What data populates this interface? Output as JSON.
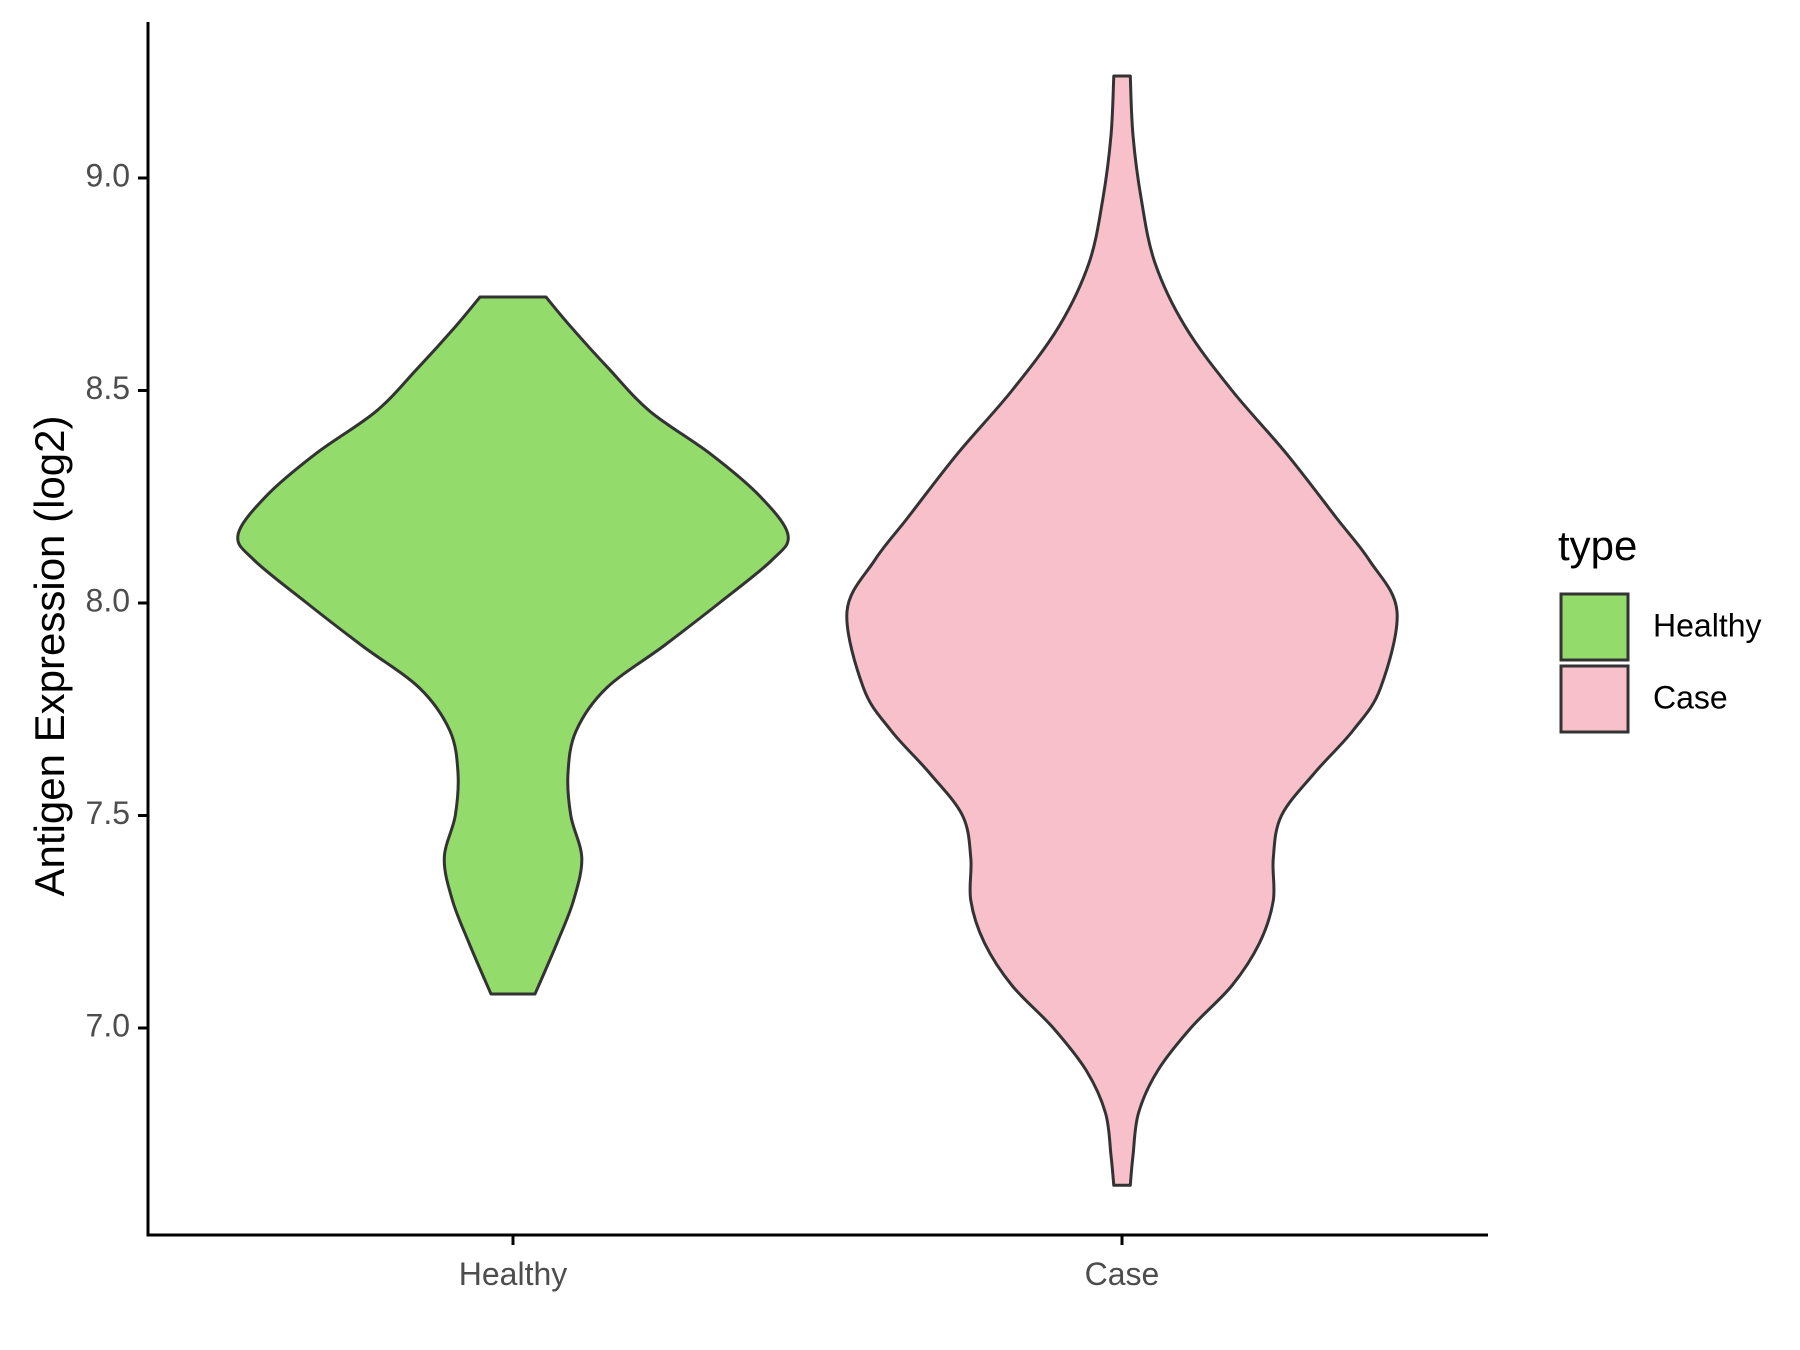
{
  "chart_data": {
    "type": "violin",
    "title": "",
    "xlabel": "",
    "ylabel": "Antigen Expression (log2)",
    "ylim": [
      6.6,
      9.4
    ],
    "yticks": [
      "7.0",
      "7.5",
      "8.0",
      "8.5",
      "9.0"
    ],
    "grid": false,
    "legend": {
      "title": "type",
      "placement": "right",
      "entries": [
        {
          "label": "Healthy",
          "color": "#93dc6b"
        },
        {
          "label": "Case",
          "color": "#f7c0cb"
        }
      ]
    },
    "outline_color": "#333333",
    "categories": [
      "Healthy",
      "Case"
    ],
    "series": [
      {
        "name": "Healthy",
        "color": "#93dc6b",
        "min": 7.08,
        "max": 8.72,
        "density_profile": [
          [
            7.08,
            0.08
          ],
          [
            7.2,
            0.16
          ],
          [
            7.3,
            0.22
          ],
          [
            7.4,
            0.25
          ],
          [
            7.5,
            0.21
          ],
          [
            7.6,
            0.2
          ],
          [
            7.7,
            0.23
          ],
          [
            7.8,
            0.34
          ],
          [
            7.9,
            0.55
          ],
          [
            8.0,
            0.75
          ],
          [
            8.1,
            0.94
          ],
          [
            8.16,
            1.0
          ],
          [
            8.25,
            0.9
          ],
          [
            8.35,
            0.72
          ],
          [
            8.45,
            0.5
          ],
          [
            8.55,
            0.35
          ],
          [
            8.65,
            0.21
          ],
          [
            8.72,
            0.12
          ]
        ]
      },
      {
        "name": "Case",
        "color": "#f7c0cb",
        "min": 6.63,
        "max": 9.24,
        "density_profile": [
          [
            6.63,
            0.03
          ],
          [
            6.7,
            0.04
          ],
          [
            6.8,
            0.06
          ],
          [
            6.9,
            0.13
          ],
          [
            7.0,
            0.25
          ],
          [
            7.1,
            0.4
          ],
          [
            7.2,
            0.5
          ],
          [
            7.3,
            0.55
          ],
          [
            7.4,
            0.55
          ],
          [
            7.5,
            0.58
          ],
          [
            7.6,
            0.7
          ],
          [
            7.7,
            0.84
          ],
          [
            7.8,
            0.94
          ],
          [
            7.98,
            1.0
          ],
          [
            8.1,
            0.9
          ],
          [
            8.2,
            0.78
          ],
          [
            8.35,
            0.6
          ],
          [
            8.5,
            0.4
          ],
          [
            8.65,
            0.23
          ],
          [
            8.8,
            0.12
          ],
          [
            8.95,
            0.07
          ],
          [
            9.1,
            0.04
          ],
          [
            9.24,
            0.03
          ]
        ]
      }
    ]
  }
}
